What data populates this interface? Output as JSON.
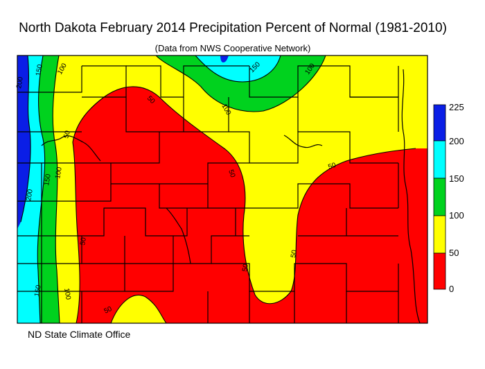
{
  "title": "North Dakota February 2014 Precipitation Percent of Normal (1981-2010)",
  "subtitle": "(Data from NWS Cooperative Network)",
  "credit": "ND State Climate Office",
  "legend": {
    "ticks": [
      "225",
      "200",
      "150",
      "100",
      "50",
      "0"
    ],
    "bands": [
      {
        "range": "200-225",
        "color": "#0a1ee6"
      },
      {
        "range": "150-200",
        "color": "#00ffff"
      },
      {
        "range": "100-150",
        "color": "#00d21e"
      },
      {
        "range": "50-100",
        "color": "#ffff00"
      },
      {
        "range": "0-50",
        "color": "#ff0000"
      }
    ]
  },
  "contour_labels": [
    "200",
    "150",
    "100",
    "150",
    "100",
    "50",
    "50",
    "100",
    "150",
    "100",
    "50",
    "50",
    "50",
    "50",
    "50",
    "100",
    "150",
    "200",
    "50"
  ]
}
